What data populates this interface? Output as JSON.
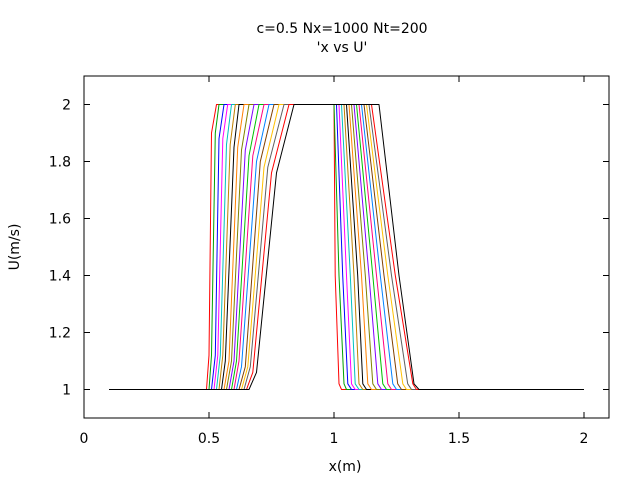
{
  "chart_data": {
    "type": "line",
    "title": "c=0.5 Nx=1000 Nt=200",
    "subtitle": "'x vs U'",
    "xlabel": "x(m)",
    "ylabel": "U(m/s)",
    "xlim": [
      0,
      2.1
    ],
    "ylim": [
      0.9,
      2.1
    ],
    "xticks": [
      0,
      0.5,
      1,
      1.5,
      2
    ],
    "xtick_labels": [
      "0",
      "0.5",
      "1",
      "1.5",
      "2"
    ],
    "yticks": [
      1,
      1.2,
      1.4,
      1.6,
      1.8,
      2
    ],
    "ytick_labels": [
      "1",
      "1.2",
      "1.4",
      "1.6",
      "1.8",
      "2"
    ],
    "grid": false,
    "legend": "none",
    "base_value": 1,
    "peak_value": 2,
    "x_start": 0.1,
    "x_end": 2,
    "colors": [
      "#ff0000",
      "#00a000",
      "#0000ff",
      "#ff00ff",
      "#00c0c0",
      "#c08000",
      "#000000",
      "#ff8000",
      "#808000",
      "#8000ff",
      "#00c000",
      "#ff0080",
      "#0080ff",
      "#804000",
      "#ffc000",
      "#606060"
    ],
    "series": [
      {
        "x": [
          0.1,
          0.49,
          0.5,
          0.51,
          0.53,
          1.0,
          1.005,
          1.02,
          1.03,
          2.0
        ],
        "y": [
          1,
          1,
          1.12,
          1.9,
          2,
          2,
          1.4,
          1.02,
          1,
          1
        ]
      },
      {
        "x": [
          0.1,
          0.5,
          0.51,
          0.525,
          0.54,
          1.0,
          1.02,
          1.04,
          1.05,
          2.0
        ],
        "y": [
          1,
          1,
          1.12,
          1.9,
          2,
          2,
          1.4,
          1.02,
          1,
          1
        ]
      },
      {
        "x": [
          0.1,
          0.51,
          0.525,
          0.54,
          0.56,
          1.01,
          1.035,
          1.055,
          1.07,
          2.0
        ],
        "y": [
          1,
          1,
          1.12,
          1.88,
          2,
          2,
          1.4,
          1.02,
          1,
          1
        ]
      },
      {
        "x": [
          0.1,
          0.52,
          0.535,
          0.555,
          0.575,
          1.02,
          1.05,
          1.07,
          1.085,
          2.0
        ],
        "y": [
          1,
          1,
          1.12,
          1.88,
          2,
          2,
          1.4,
          1.02,
          1,
          1
        ]
      },
      {
        "x": [
          0.1,
          0.53,
          0.545,
          0.57,
          0.59,
          1.03,
          1.065,
          1.085,
          1.1,
          2.0
        ],
        "y": [
          1,
          1,
          1.12,
          1.86,
          2,
          2,
          1.4,
          1.02,
          1,
          1
        ]
      },
      {
        "x": [
          0.1,
          0.54,
          0.555,
          0.585,
          0.605,
          1.04,
          1.08,
          1.1,
          1.115,
          2.0
        ],
        "y": [
          1,
          1,
          1.12,
          1.86,
          2,
          2,
          1.4,
          1.02,
          1,
          1
        ]
      },
      {
        "x": [
          0.1,
          0.55,
          0.565,
          0.6,
          0.62,
          1.05,
          1.095,
          1.115,
          1.13,
          2.0
        ],
        "y": [
          1,
          1,
          1.1,
          1.85,
          2,
          2,
          1.4,
          1.02,
          1,
          1
        ]
      },
      {
        "x": [
          0.1,
          0.56,
          0.58,
          0.615,
          0.64,
          1.06,
          1.11,
          1.135,
          1.15,
          2.0
        ],
        "y": [
          1,
          1,
          1.1,
          1.85,
          2,
          2,
          1.4,
          1.02,
          1,
          1
        ]
      },
      {
        "x": [
          0.1,
          0.57,
          0.59,
          0.63,
          0.66,
          1.07,
          1.125,
          1.155,
          1.17,
          2.0
        ],
        "y": [
          1,
          1,
          1.1,
          1.84,
          2,
          2,
          1.4,
          1.02,
          1,
          1
        ]
      },
      {
        "x": [
          0.1,
          0.58,
          0.6,
          0.645,
          0.68,
          1.08,
          1.14,
          1.175,
          1.19,
          2.0
        ],
        "y": [
          1,
          1,
          1.1,
          1.84,
          2,
          2,
          1.4,
          1.02,
          1,
          1
        ]
      },
      {
        "x": [
          0.1,
          0.59,
          0.61,
          0.66,
          0.7,
          1.09,
          1.155,
          1.195,
          1.21,
          2.0
        ],
        "y": [
          1,
          1,
          1.1,
          1.82,
          2,
          2,
          1.4,
          1.02,
          1,
          1
        ]
      },
      {
        "x": [
          0.1,
          0.6,
          0.62,
          0.675,
          0.72,
          1.1,
          1.17,
          1.215,
          1.23,
          2.0
        ],
        "y": [
          1,
          1,
          1.1,
          1.82,
          2,
          2,
          1.4,
          1.02,
          1,
          1
        ]
      },
      {
        "x": [
          0.1,
          0.61,
          0.63,
          0.69,
          0.74,
          1.11,
          1.185,
          1.235,
          1.25,
          2.0
        ],
        "y": [
          1,
          1,
          1.08,
          1.8,
          2,
          2,
          1.4,
          1.02,
          1,
          1
        ]
      },
      {
        "x": [
          0.1,
          0.62,
          0.645,
          0.705,
          0.76,
          1.12,
          1.2,
          1.255,
          1.27,
          2.0
        ],
        "y": [
          1,
          1,
          1.08,
          1.8,
          2,
          2,
          1.4,
          1.02,
          1,
          1
        ]
      },
      {
        "x": [
          0.1,
          0.63,
          0.655,
          0.72,
          0.78,
          1.13,
          1.215,
          1.275,
          1.29,
          2.0
        ],
        "y": [
          1,
          1,
          1.08,
          1.78,
          2,
          2,
          1.4,
          1.02,
          1,
          1
        ]
      },
      {
        "x": [
          0.1,
          0.64,
          0.665,
          0.735,
          0.8,
          1.14,
          1.23,
          1.295,
          1.31,
          2.0
        ],
        "y": [
          1,
          1,
          1.08,
          1.78,
          2,
          2,
          1.4,
          1.02,
          1,
          1
        ]
      },
      {
        "x": [
          0.1,
          0.65,
          0.675,
          0.75,
          0.82,
          1.15,
          1.245,
          1.315,
          1.33,
          2.0
        ],
        "y": [
          1,
          1,
          1.06,
          1.76,
          2,
          2,
          1.4,
          1.02,
          1,
          1
        ]
      },
      {
        "x": [
          0.1,
          0.66,
          0.69,
          0.77,
          0.84,
          1.18,
          1.26,
          1.32,
          1.34,
          2.0
        ],
        "y": [
          1,
          1,
          1.06,
          1.76,
          2,
          2,
          1.4,
          1.02,
          1,
          1
        ]
      }
    ]
  }
}
